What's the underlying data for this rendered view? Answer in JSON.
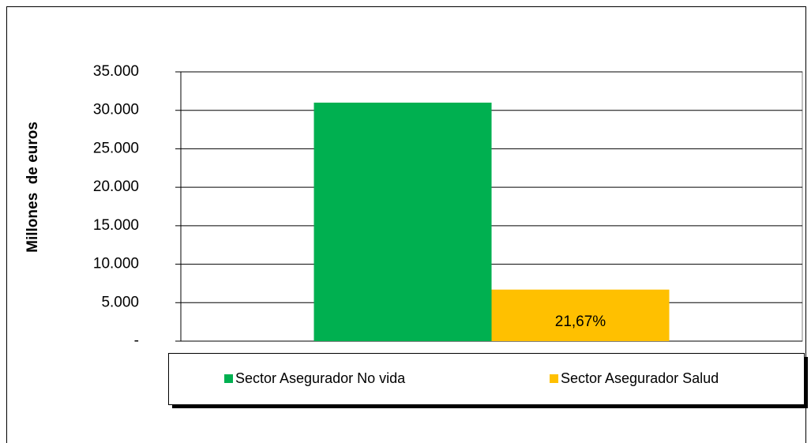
{
  "chart_data": {
    "type": "bar",
    "categories": [
      null
    ],
    "series": [
      {
        "name": "Sector Asegurador No vida",
        "color": "#00b050",
        "values": [
          31000
        ]
      },
      {
        "name": "Sector Asegurador Salud",
        "color": "#ffc000",
        "values": [
          6700
        ]
      }
    ],
    "annotation": "21,67%",
    "y_label": "Millones  de euros",
    "ylim": [
      0,
      35000
    ],
    "yticks": [
      {
        "value": 0,
        "label": "-"
      },
      {
        "value": 5000,
        "label": "5.000"
      },
      {
        "value": 10000,
        "label": "10.000"
      },
      {
        "value": 15000,
        "label": "15.000"
      },
      {
        "value": 20000,
        "label": "20.000"
      },
      {
        "value": 25000,
        "label": "25.000"
      },
      {
        "value": 30000,
        "label": "30.000"
      },
      {
        "value": 35000,
        "label": "35.000"
      }
    ],
    "grid": true,
    "legend": "bottom"
  }
}
